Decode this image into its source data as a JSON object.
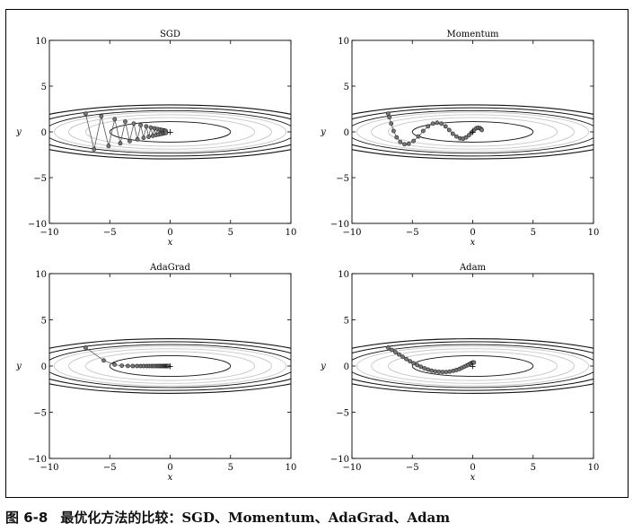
{
  "caption": {
    "label": "图 6-8",
    "text": "最优化方法的比较：SGD、Momentum、AdaGrad、Adam"
  },
  "colors": {
    "path": "#555555",
    "marker_fill": "#777777",
    "contour_dark": "#111111",
    "contour_light": "#c8c8c8"
  },
  "chart_data": [
    {
      "type": "line",
      "title": "SGD",
      "xlabel": "x",
      "ylabel": "y",
      "xlim": [
        -10,
        10
      ],
      "ylim": [
        -10,
        10
      ],
      "xticks": [
        "−10",
        "−5",
        "0",
        "5",
        "10"
      ],
      "yticks": [
        "10",
        "5",
        "0",
        "−5",
        "−10"
      ],
      "minimum_marker": "+",
      "contours": "ellipses of f(x,y)=x^2/20+y^2 centered at (0,0)",
      "series": [
        {
          "x": [
            -7.0,
            -6.3,
            -5.7,
            -5.1,
            -4.59,
            -4.13,
            -3.72,
            -3.35,
            -3.01,
            -2.71,
            -2.44,
            -2.2,
            -1.98,
            -1.78,
            -1.6,
            -1.44,
            -1.3,
            -1.17,
            -1.05,
            -0.95,
            -0.85,
            -0.77,
            -0.69,
            -0.62,
            -0.56,
            -0.5,
            -0.45,
            -0.41,
            -0.37,
            -0.33
          ],
          "y": [
            2.0,
            -1.9,
            1.71,
            -1.54,
            1.39,
            -1.25,
            1.12,
            -1.01,
            0.91,
            -0.82,
            0.74,
            -0.66,
            0.6,
            -0.54,
            0.48,
            -0.44,
            0.39,
            -0.35,
            0.32,
            -0.29,
            0.26,
            -0.23,
            0.21,
            -0.19,
            0.17,
            -0.15,
            0.14,
            -0.12,
            0.11,
            -0.1
          ]
        }
      ]
    },
    {
      "type": "line",
      "title": "Momentum",
      "xlabel": "x",
      "ylabel": "y",
      "xlim": [
        -10,
        10
      ],
      "ylim": [
        -10,
        10
      ],
      "xticks": [
        "−10",
        "−5",
        "0",
        "5",
        "10"
      ],
      "yticks": [
        "10",
        "5",
        "0",
        "−5",
        "−10"
      ],
      "minimum_marker": "+",
      "contours": "ellipses of f(x,y)=x^2/20+y^2 centered at (0,0)",
      "series": [
        {
          "x": [
            -7.0,
            -6.9,
            -6.75,
            -6.55,
            -6.3,
            -6.0,
            -5.65,
            -5.3,
            -4.9,
            -4.5,
            -4.1,
            -3.7,
            -3.3,
            -2.95,
            -2.6,
            -2.25,
            -1.95,
            -1.65,
            -1.35,
            -1.05,
            -0.8,
            -0.55,
            -0.3,
            -0.1,
            0.1,
            0.3,
            0.45,
            0.6,
            0.7,
            0.75
          ],
          "y": [
            2.0,
            1.6,
            0.9,
            0.1,
            -0.6,
            -1.1,
            -1.35,
            -1.3,
            -1.0,
            -0.5,
            0.1,
            0.6,
            0.9,
            1.0,
            0.9,
            0.6,
            0.2,
            -0.2,
            -0.5,
            -0.7,
            -0.75,
            -0.6,
            -0.35,
            -0.05,
            0.2,
            0.4,
            0.45,
            0.4,
            0.3,
            0.2
          ]
        }
      ]
    },
    {
      "type": "line",
      "title": "AdaGrad",
      "xlabel": "x",
      "ylabel": "y",
      "xlim": [
        -10,
        10
      ],
      "ylim": [
        -10,
        10
      ],
      "xticks": [
        "−10",
        "−5",
        "0",
        "5",
        "10"
      ],
      "yticks": [
        "10",
        "5",
        "0",
        "−5",
        "−10"
      ],
      "minimum_marker": "+",
      "contours": "ellipses of f(x,y)=x^2/20+y^2 centered at (0,0)",
      "series": [
        {
          "x": [
            -7.0,
            -5.5,
            -4.6,
            -4.0,
            -3.5,
            -3.1,
            -2.75,
            -2.45,
            -2.2,
            -1.95,
            -1.75,
            -1.55,
            -1.4,
            -1.25,
            -1.1,
            -0.98,
            -0.87,
            -0.77,
            -0.68,
            -0.6,
            -0.53,
            -0.46,
            -0.4,
            -0.35,
            -0.3,
            -0.26,
            -0.22,
            -0.19,
            -0.16,
            -0.14
          ],
          "y": [
            2.0,
            0.6,
            0.15,
            0.04,
            0.01,
            0.0,
            0.0,
            0.0,
            0.0,
            0.0,
            0.0,
            0.0,
            0.0,
            0.0,
            0.0,
            0.0,
            0.0,
            0.0,
            0.0,
            0.0,
            0.0,
            0.0,
            0.0,
            0.0,
            0.0,
            0.0,
            0.0,
            0.0,
            0.0,
            0.0
          ]
        }
      ]
    },
    {
      "type": "line",
      "title": "Adam",
      "xlabel": "x",
      "ylabel": "y",
      "xlim": [
        -10,
        10
      ],
      "ylim": [
        -10,
        10
      ],
      "xticks": [
        "−10",
        "−5",
        "0",
        "5",
        "10"
      ],
      "yticks": [
        "10",
        "5",
        "0",
        "−5",
        "−10"
      ],
      "minimum_marker": "+",
      "contours": "ellipses of f(x,y)=x^2/20+y^2 centered at (0,0)",
      "series": [
        {
          "x": [
            -7.0,
            -6.7,
            -6.4,
            -6.1,
            -5.8,
            -5.5,
            -5.2,
            -4.9,
            -4.6,
            -4.3,
            -4.0,
            -3.7,
            -3.4,
            -3.1,
            -2.8,
            -2.5,
            -2.2,
            -1.9,
            -1.6,
            -1.35,
            -1.1,
            -0.9,
            -0.7,
            -0.5,
            -0.35,
            -0.2,
            -0.1,
            0.0,
            0.05,
            0.1
          ],
          "y": [
            2.0,
            1.75,
            1.5,
            1.25,
            1.0,
            0.75,
            0.52,
            0.3,
            0.1,
            -0.08,
            -0.25,
            -0.38,
            -0.5,
            -0.58,
            -0.63,
            -0.65,
            -0.64,
            -0.6,
            -0.52,
            -0.43,
            -0.32,
            -0.2,
            -0.08,
            0.05,
            0.15,
            0.25,
            0.32,
            0.36,
            0.38,
            0.38
          ]
        }
      ]
    }
  ]
}
